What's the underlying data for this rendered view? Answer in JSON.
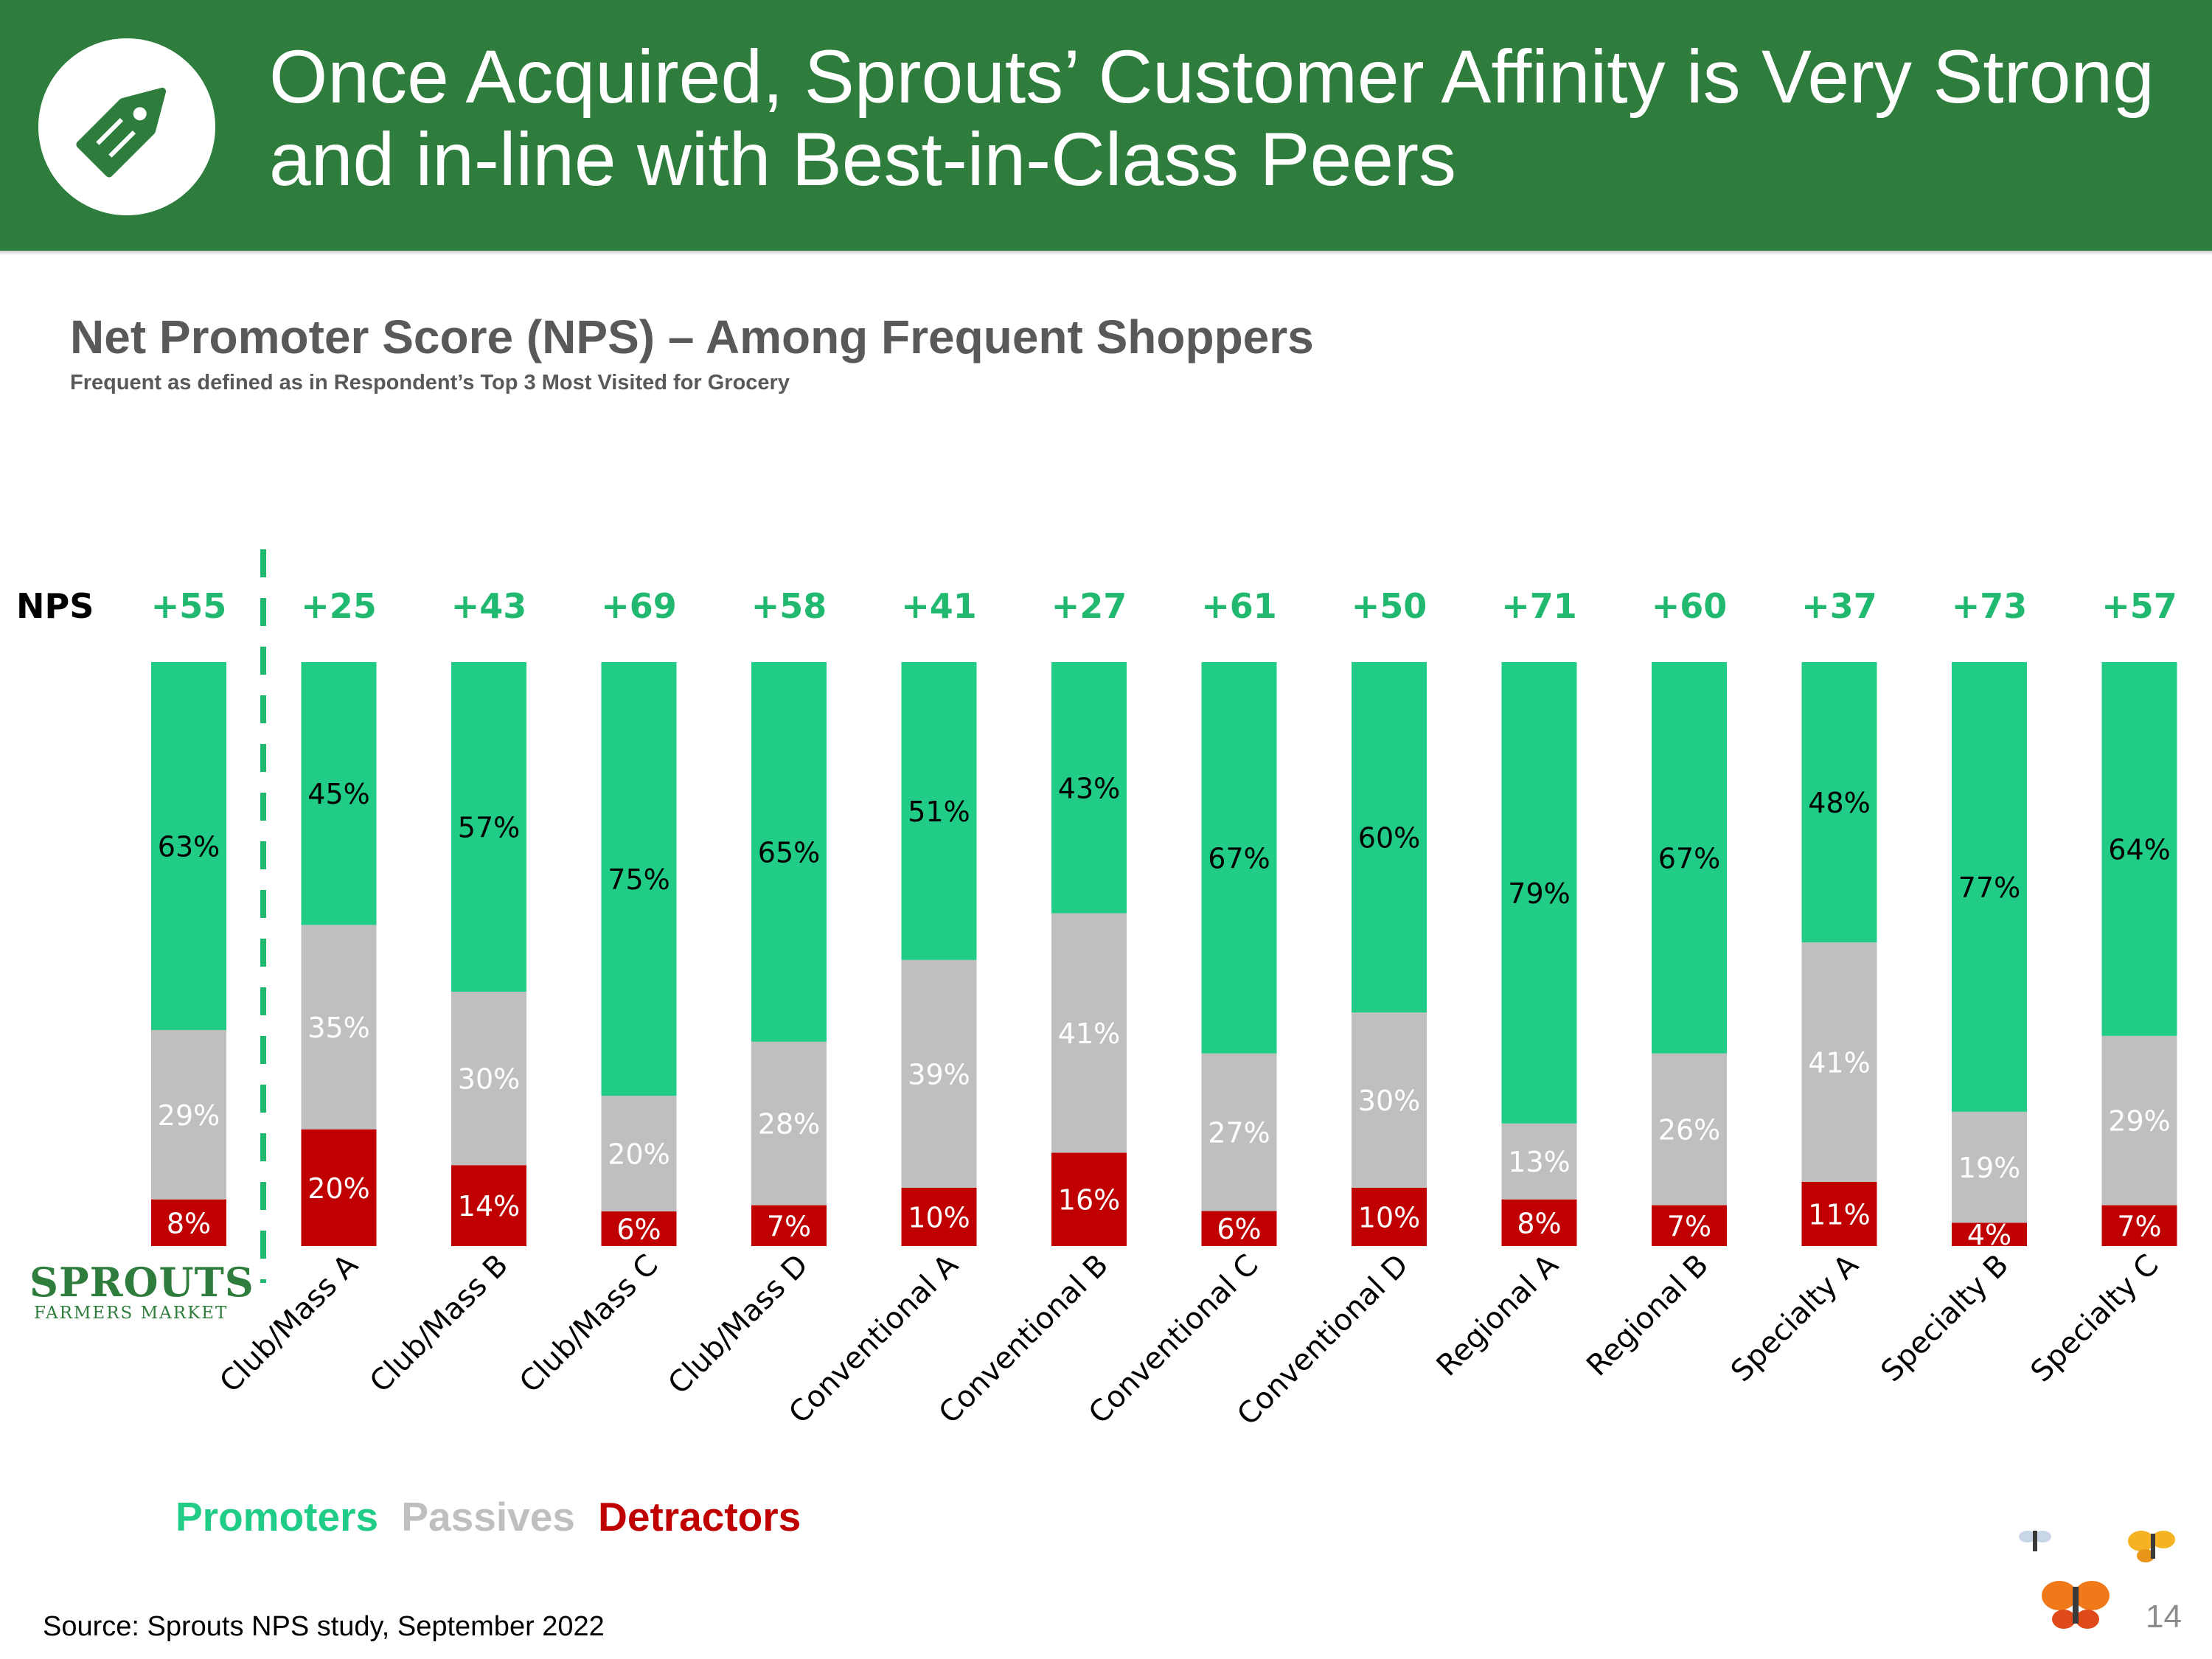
{
  "header": {
    "title_line1": "Once Acquired, Sprouts’ Customer Affinity is Very Strong",
    "title_line2": "and in-line with Best-in-Class Peers",
    "logo_icon": "price-tag-icon"
  },
  "colors": {
    "header_bg": "#2e7d3c",
    "promoters": "#21cc86",
    "passives": "#bfbfbf",
    "detractors": "#c00000",
    "nps_value": "#21b86f",
    "title_gray": "#595959"
  },
  "chart_data": {
    "type": "bar",
    "stacked": true,
    "title": "Net Promoter Score (NPS) – Among Frequent Shoppers",
    "subtitle": "Frequent as defined as in Respondent’s Top 3 Most Visited for Grocery",
    "nps_label": "NPS",
    "categories": [
      "Sprouts",
      "Club/Mass A",
      "Club/Mass B",
      "Club/Mass C",
      "Club/Mass D",
      "Conventional A",
      "Conventional B",
      "Conventional C",
      "Conventional D",
      "Regional A",
      "Regional B",
      "Specialty A",
      "Specialty B",
      "Specialty C"
    ],
    "nps": [
      "+55",
      "+25",
      "+43",
      "+69",
      "+58",
      "+41",
      "+27",
      "+61",
      "+50",
      "+71",
      "+60",
      "+37",
      "+73",
      "+57"
    ],
    "series": [
      {
        "name": "Detractors",
        "values": [
          8,
          20,
          14,
          6,
          7,
          10,
          16,
          6,
          10,
          8,
          7,
          11,
          4,
          7
        ]
      },
      {
        "name": "Passives",
        "values": [
          29,
          35,
          30,
          20,
          28,
          39,
          41,
          27,
          30,
          13,
          26,
          41,
          19,
          29
        ]
      },
      {
        "name": "Promoters",
        "values": [
          63,
          45,
          57,
          75,
          65,
          51,
          43,
          67,
          60,
          79,
          67,
          48,
          77,
          64
        ]
      }
    ],
    "ylim": [
      0,
      100
    ],
    "legend": [
      "Promoters",
      "Passives",
      "Detractors"
    ]
  },
  "sprouts_logo": {
    "name": "SPROUTS",
    "tagline": "FARMERS MARKET"
  },
  "footer": {
    "source": "Source: Sprouts NPS study, September 2022",
    "page_number": "14"
  }
}
